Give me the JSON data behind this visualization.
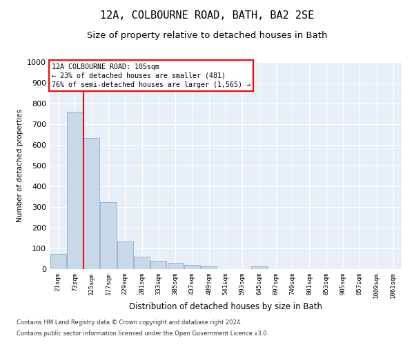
{
  "title": "12A, COLBOURNE ROAD, BATH, BA2 2SE",
  "subtitle": "Size of property relative to detached houses in Bath",
  "xlabel": "Distribution of detached houses by size in Bath",
  "ylabel": "Number of detached properties",
  "bin_labels": [
    "21sqm",
    "73sqm",
    "125sqm",
    "177sqm",
    "229sqm",
    "281sqm",
    "333sqm",
    "385sqm",
    "437sqm",
    "489sqm",
    "541sqm",
    "593sqm",
    "645sqm",
    "697sqm",
    "749sqm",
    "801sqm",
    "853sqm",
    "905sqm",
    "957sqm",
    "1009sqm",
    "1061sqm"
  ],
  "bar_heights": [
    75,
    760,
    635,
    325,
    135,
    60,
    40,
    30,
    20,
    15,
    0,
    0,
    15,
    0,
    0,
    0,
    0,
    0,
    0,
    0,
    0
  ],
  "bar_color": "#c8d8e8",
  "bar_edge_color": "#8ab0cc",
  "property_value": 105,
  "annotation_text": "12A COLBOURNE ROAD: 105sqm\n← 23% of detached houses are smaller (481)\n76% of semi-detached houses are larger (1,565) →",
  "annotation_box_color": "white",
  "annotation_box_edge_color": "red",
  "line_color": "red",
  "ylim": [
    0,
    1000
  ],
  "yticks": [
    0,
    100,
    200,
    300,
    400,
    500,
    600,
    700,
    800,
    900,
    1000
  ],
  "background_color": "#e8eff6",
  "footer_line1": "Contains HM Land Registry data © Crown copyright and database right 2024.",
  "footer_line2": "Contains public sector information licensed under the Open Government Licence v3.0.",
  "title_fontsize": 11,
  "subtitle_fontsize": 9.5
}
